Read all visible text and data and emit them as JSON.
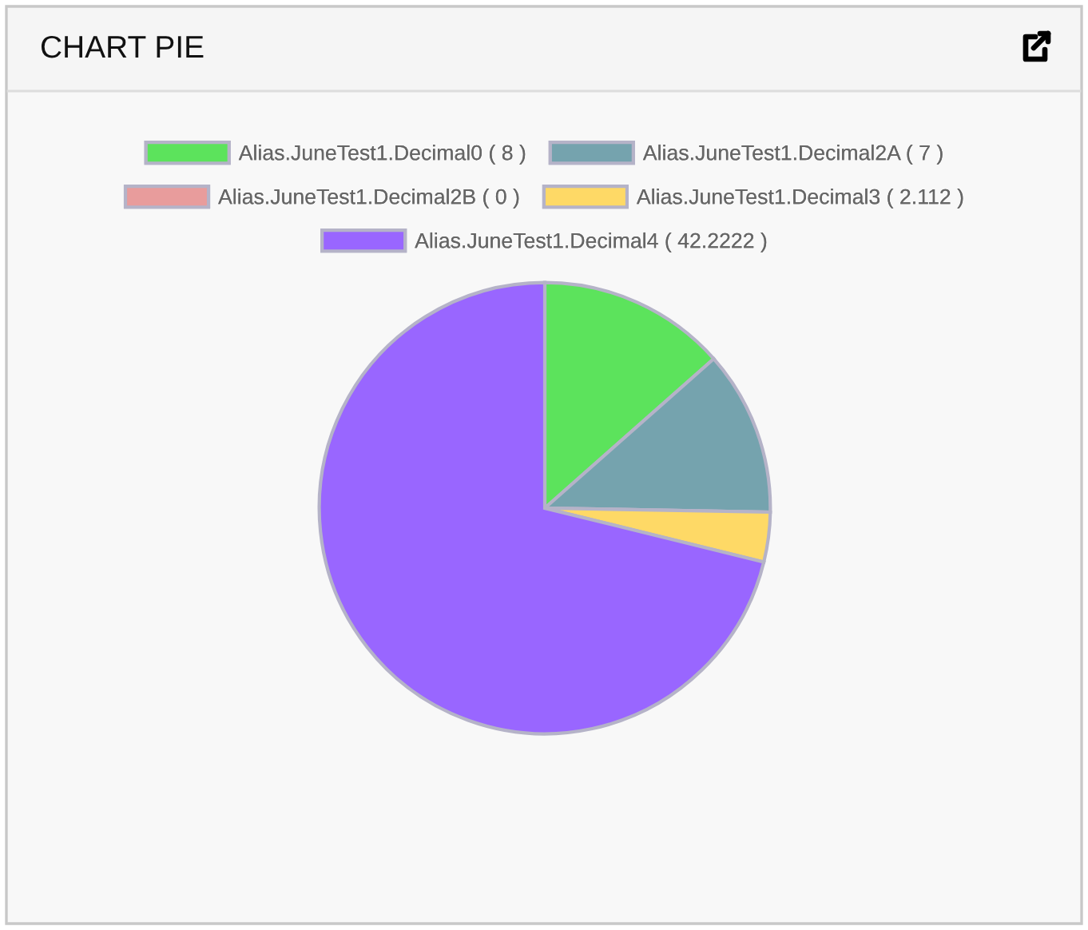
{
  "chart_data": {
    "type": "pie",
    "title": "CHART PIE",
    "categories": [
      "Alias.JuneTest1.Decimal0 ( 8 )",
      "Alias.JuneTest1.Decimal2A ( 7 )",
      "Alias.JuneTest1.Decimal2B ( 0 )",
      "Alias.JuneTest1.Decimal3 ( 2.112 )",
      "Alias.JuneTest1.Decimal4 ( 42.2222 )"
    ],
    "values": [
      8,
      7,
      0,
      2.112,
      42.2222
    ],
    "colors": [
      "#5ce35c",
      "#75a3ae",
      "#e89c9c",
      "#fed966",
      "#9966ff"
    ],
    "legend": "top"
  }
}
